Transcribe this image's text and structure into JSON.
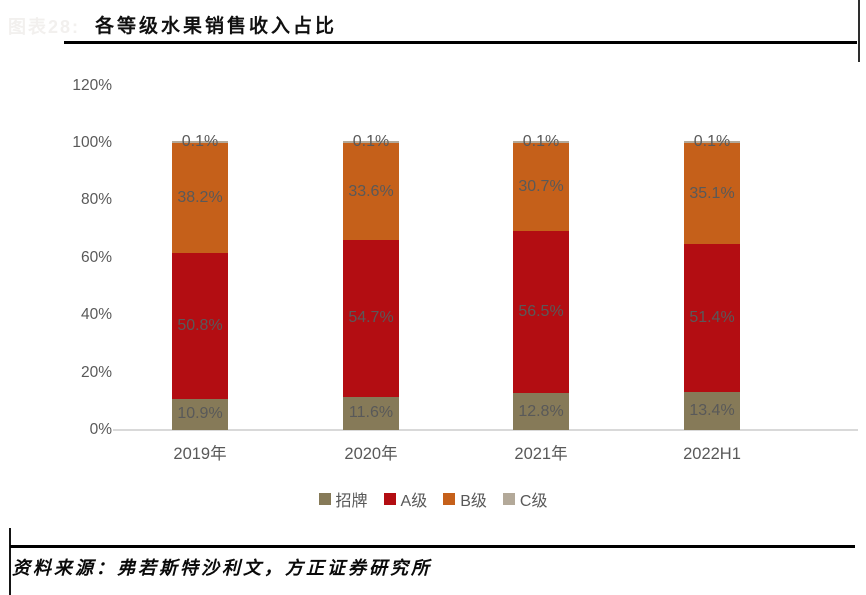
{
  "header": {
    "figure_label": "图表28:",
    "title": "各等级水果销售收入占比"
  },
  "chart_data": {
    "type": "bar",
    "stacked": true,
    "title": "各等级水果销售收入占比",
    "categories": [
      "2019年",
      "2020年",
      "2021年",
      "2022H1"
    ],
    "series": [
      {
        "name": "招牌",
        "color": "#867a58",
        "values": [
          10.9,
          11.6,
          12.8,
          13.4
        ]
      },
      {
        "name": "A级",
        "color": "#b30d12",
        "values": [
          50.8,
          54.7,
          56.5,
          51.4
        ]
      },
      {
        "name": "B级",
        "color": "#c5601a",
        "values": [
          38.2,
          33.6,
          30.7,
          35.1
        ]
      },
      {
        "name": "C级",
        "color": "#b3a999",
        "values": [
          0.1,
          0.1,
          0.1,
          0.1
        ]
      }
    ],
    "value_suffix": "%",
    "data_labels_shown": true,
    "ylim": [
      0,
      120
    ],
    "yticks": [
      {
        "v": 0,
        "label": "0%"
      },
      {
        "v": 20,
        "label": "20%"
      },
      {
        "v": 40,
        "label": "40%"
      },
      {
        "v": 60,
        "label": "60%"
      },
      {
        "v": 80,
        "label": "80%"
      },
      {
        "v": 100,
        "label": "100%"
      },
      {
        "v": 120,
        "label": "120%"
      }
    ],
    "legend_position": "bottom",
    "grid": false,
    "label_color": "#595959",
    "axis_line_color": "#d9d9d9"
  },
  "footer": {
    "source": "资料来源：弗若斯特沙利文，方正证券研究所"
  }
}
